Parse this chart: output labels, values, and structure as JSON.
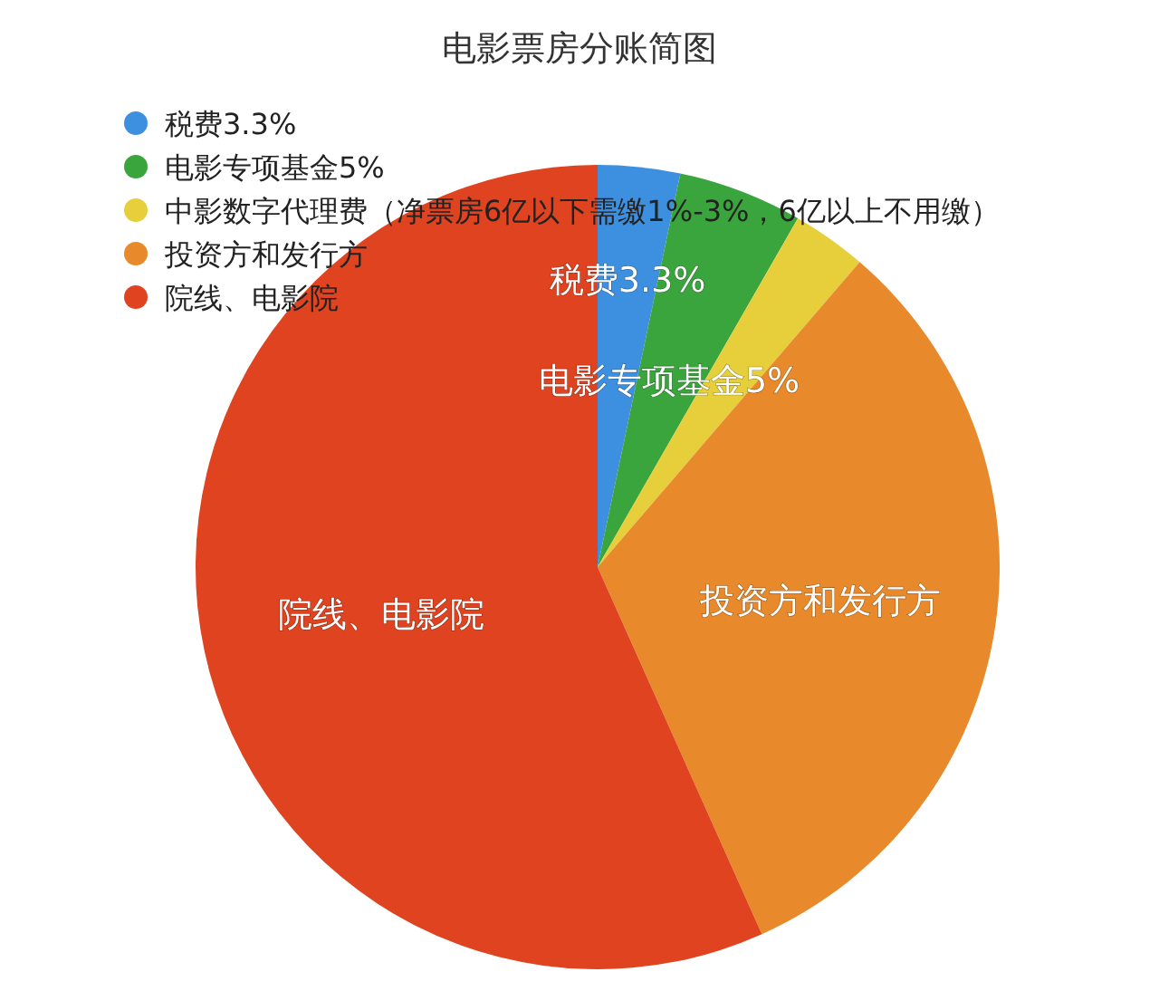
{
  "chart_data": {
    "type": "pie",
    "title": "电影票房分账简图",
    "categories": [
      "税费3.3%",
      "电影专项基金5%",
      "中影数字代理费（净票房6亿以下需缴1%-3%，6亿以上不用缴）",
      "投资方和发行方",
      "院线、电影院"
    ],
    "values": [
      3.3,
      5,
      3,
      32,
      56.7
    ],
    "colors": [
      "#3d8fdf",
      "#3ba53d",
      "#e6cf3a",
      "#e88a2b",
      "#df4320"
    ],
    "value_labels": [
      "税费3.3%",
      "电影专项基金5%",
      null,
      "投资方和发行方",
      "院线、电影院"
    ],
    "legend": "top left"
  }
}
